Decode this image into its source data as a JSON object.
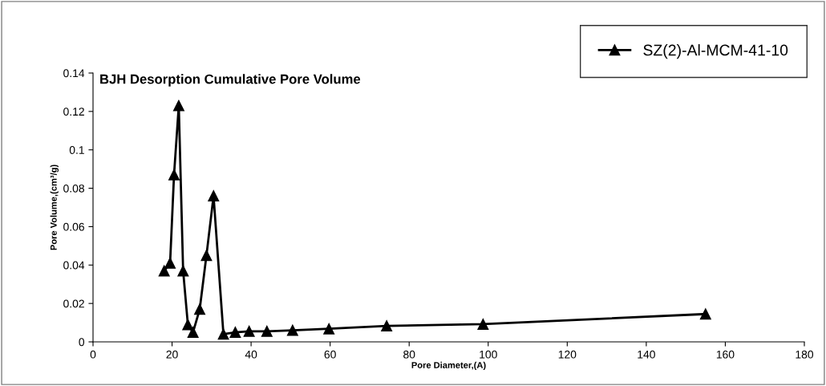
{
  "chart_data": {
    "type": "line",
    "title": "BJH Desorption Cumulative Pore Volume",
    "xlabel": "Pore Diameter,(A)",
    "ylabel": "Pore Volume,(cm³/g)",
    "x": [
      18,
      19.5,
      20.5,
      21.7,
      22.8,
      24,
      25.3,
      27,
      28.7,
      30.5,
      33,
      36,
      39.5,
      44,
      50.5,
      59.7,
      74.3,
      98.7,
      155
    ],
    "series": [
      {
        "name": "SZ(2)-Al-MCM-41-10",
        "color": "#000000",
        "values": [
          0.037,
          0.041,
          0.087,
          0.123,
          0.037,
          0.009,
          0.005,
          0.017,
          0.045,
          0.076,
          0.004,
          0.005,
          0.0055,
          0.0055,
          0.006,
          0.0068,
          0.0083,
          0.0092,
          0.0145
        ]
      }
    ],
    "xlim": [
      0,
      180
    ],
    "xticks": [
      0,
      20,
      40,
      60,
      80,
      100,
      120,
      140,
      160,
      180
    ],
    "ylim": [
      0,
      0.14
    ],
    "yticks": [
      0,
      0.02,
      0.04,
      0.06,
      0.08,
      0.1,
      0.12,
      0.14
    ],
    "marker": "triangle",
    "line_style": "solid",
    "legend": "top right",
    "grid": false
  }
}
